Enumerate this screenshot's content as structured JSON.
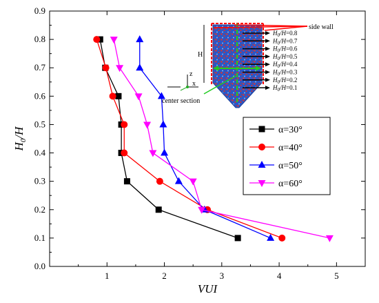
{
  "chart_data": {
    "type": "line",
    "title": "",
    "xlabel": "VUI",
    "ylabel_main": "H",
    "ylabel_sub": "0",
    "ylabel_tail": "/H",
    "xlim": [
      0,
      5.5
    ],
    "ylim": [
      0,
      0.9
    ],
    "xticks": [
      "1",
      "2",
      "3",
      "4",
      "5"
    ],
    "yticks": [
      "0.0",
      "0.1",
      "0.2",
      "0.3",
      "0.4",
      "0.5",
      "0.6",
      "0.7",
      "0.8",
      "0.9"
    ],
    "legend_position": "center-right",
    "series": [
      {
        "name": "α=30°",
        "color": "#000000",
        "marker": "square",
        "points": [
          [
            0.88,
            0.8
          ],
          [
            0.97,
            0.7
          ],
          [
            1.2,
            0.6
          ],
          [
            1.25,
            0.5
          ],
          [
            1.25,
            0.4
          ],
          [
            1.35,
            0.3
          ],
          [
            1.9,
            0.2
          ],
          [
            3.28,
            0.1
          ]
        ]
      },
      {
        "name": "α=40°",
        "color": "#ff0000",
        "marker": "circle",
        "points": [
          [
            0.82,
            0.8
          ],
          [
            0.98,
            0.7
          ],
          [
            1.1,
            0.6
          ],
          [
            1.3,
            0.5
          ],
          [
            1.3,
            0.4
          ],
          [
            1.92,
            0.3
          ],
          [
            2.75,
            0.2
          ],
          [
            4.05,
            0.1
          ]
        ]
      },
      {
        "name": "α=50°",
        "color": "#0000ff",
        "marker": "triangle-up",
        "points": [
          [
            1.57,
            0.8
          ],
          [
            1.57,
            0.7
          ],
          [
            1.95,
            0.6
          ],
          [
            1.98,
            0.5
          ],
          [
            2.0,
            0.4
          ],
          [
            2.25,
            0.3
          ],
          [
            2.7,
            0.2
          ],
          [
            3.85,
            0.1
          ]
        ]
      },
      {
        "name": "α=60°",
        "color": "#ff00ff",
        "marker": "triangle-down",
        "points": [
          [
            1.12,
            0.8
          ],
          [
            1.22,
            0.7
          ],
          [
            1.55,
            0.6
          ],
          [
            1.7,
            0.5
          ],
          [
            1.8,
            0.4
          ],
          [
            2.5,
            0.3
          ],
          [
            2.65,
            0.2
          ],
          [
            4.88,
            0.1
          ]
        ]
      }
    ]
  },
  "inset": {
    "side_wall_label": "side wall",
    "center_section_label": "center section",
    "height_label": "H",
    "axis_z": "z",
    "axis_x": "x",
    "level_ratios": [
      "=0.8",
      "=0.7",
      "=0.6",
      "=0.5",
      "=0.4",
      "=0.3",
      "=0.2",
      "=0.1"
    ],
    "level_prefix": "H",
    "level_sub": "0",
    "level_mid": "/H"
  }
}
